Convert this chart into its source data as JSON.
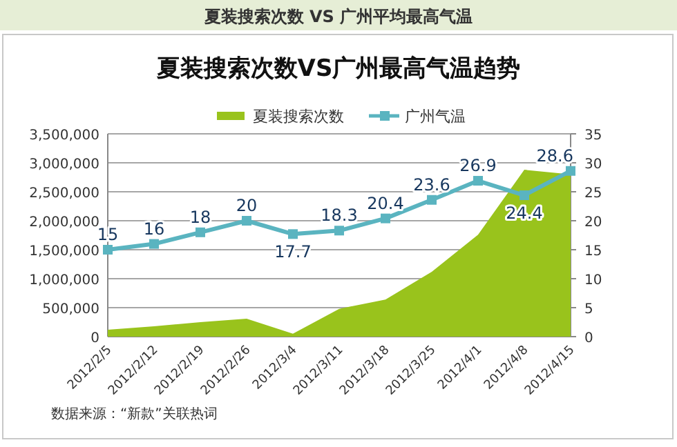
{
  "chart_data": {
    "type": "area",
    "title": "夏装搜索次数 VS 广州平均最高气温",
    "subtitle": "夏装搜索次数VS广州最高气温趋势",
    "categories": [
      "2012/2/5",
      "2012/2/12",
      "2012/2/19",
      "2012/2/26",
      "2012/3/4",
      "2012/3/11",
      "2012/3/18",
      "2012/3/25",
      "2012/4/1",
      "2012/4/8",
      "2012/4/15"
    ],
    "series": [
      {
        "name": "夏装搜索次数",
        "color": "#99c31c",
        "values": [
          120000,
          180000,
          250000,
          310000,
          50000,
          480000,
          640000,
          1120000,
          1760000,
          2880000,
          2800000
        ]
      },
      {
        "name": "广州气温",
        "type": "line",
        "axis": "y2",
        "color": "#5ab4c0",
        "marker": "square",
        "values": [
          15,
          16,
          18,
          20,
          17.7,
          18.3,
          20.4,
          23.6,
          26.9,
          24.4,
          28.6
        ],
        "value_labels": [
          "15",
          "16",
          "18",
          "20",
          "17.7",
          "18.3",
          "20.4",
          "23.6",
          "26.9",
          "24.4",
          "28.6"
        ]
      }
    ],
    "ylim": [
      0,
      3500000
    ],
    "yticks": [
      {
        "value": 0,
        "label": "0"
      },
      {
        "value": 500000,
        "label": "500,000"
      },
      {
        "value": 1000000,
        "label": "1,000,000"
      },
      {
        "value": 1500000,
        "label": "1,500,000"
      },
      {
        "value": 2000000,
        "label": "2,000,000"
      },
      {
        "value": 2500000,
        "label": "2,500,000"
      },
      {
        "value": 3000000,
        "label": "3,000,000"
      },
      {
        "value": 3500000,
        "label": "3,500,000"
      }
    ],
    "y2lim": [
      0,
      35
    ],
    "y2ticks": [
      0,
      5,
      10,
      15,
      20,
      25,
      30,
      35
    ],
    "grid": "y",
    "legend": "top",
    "annotations": [
      "数据来源：“新款”关联热词"
    ]
  }
}
